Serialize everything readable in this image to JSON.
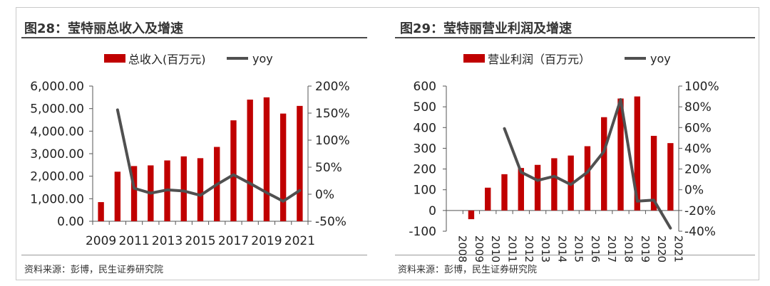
{
  "colors": {
    "bar": "#c00000",
    "line": "#505050",
    "axis": "#555555",
    "text": "#222222"
  },
  "chart_data": [
    {
      "type": "bar",
      "title": "图28：莹特丽总收入及增速",
      "legend": {
        "bar": "总收入(百万元)",
        "line": "yoy"
      },
      "source": "资料来源：彭博，民生证券研究院",
      "categories": [
        "2009",
        "2010",
        "2011",
        "2012",
        "2013",
        "2014",
        "2015",
        "2016",
        "2017",
        "2018",
        "2019",
        "2020",
        "2021"
      ],
      "x_tick_labels": [
        "2009",
        "2011",
        "2013",
        "2015",
        "2017",
        "2019",
        "2021"
      ],
      "series": [
        {
          "name": "总收入(百万元)",
          "type": "bar",
          "axis": "left",
          "values": [
            850,
            2200,
            2450,
            2480,
            2700,
            2880,
            2800,
            3300,
            4480,
            5400,
            5500,
            4780,
            5120
          ]
        },
        {
          "name": "yoy",
          "type": "line",
          "axis": "right",
          "values": [
            null,
            1.56,
            0.11,
            0.02,
            0.08,
            0.06,
            -0.02,
            0.18,
            0.36,
            0.2,
            0.03,
            -0.13,
            0.07
          ]
        }
      ],
      "y_left": {
        "min": 0,
        "max": 6000,
        "step": 1000,
        "tick_labels": [
          "0.00",
          "1,000.00",
          "2,000.00",
          "3,000.00",
          "4,000.00",
          "5,000.00",
          "6,000.00"
        ]
      },
      "y_right": {
        "min": -0.5,
        "max": 2.0,
        "step": 0.5,
        "tick_labels": [
          "-50%",
          "0%",
          "50%",
          "100%",
          "150%",
          "200%"
        ]
      },
      "x_label_rotation": 0
    },
    {
      "type": "bar",
      "title": "图29：莹特丽营业利润及增速",
      "legend": {
        "bar": "营业利润（百万元）",
        "line": "yoy"
      },
      "source": "资料来源：彭博，民生证券研究院",
      "categories": [
        "2008",
        "2009",
        "2010",
        "2011",
        "2012",
        "2013",
        "2014",
        "2015",
        "2016",
        "2017",
        "2018",
        "2019",
        "2020",
        "2021"
      ],
      "x_tick_labels": [
        "2008",
        "2009",
        "2010",
        "2011",
        "2012",
        "2013",
        "2014",
        "2015",
        "2016",
        "2017",
        "2018",
        "2019",
        "2020",
        "2021"
      ],
      "series": [
        {
          "name": "营业利润（百万元）",
          "type": "bar",
          "axis": "left",
          "values": [
            0,
            -42,
            110,
            175,
            205,
            220,
            252,
            265,
            310,
            450,
            540,
            550,
            360,
            325
          ]
        },
        {
          "name": "yoy",
          "type": "line",
          "axis": "right",
          "values": [
            null,
            null,
            null,
            0.59,
            0.17,
            0.09,
            0.13,
            0.05,
            0.17,
            0.37,
            0.87,
            -0.11,
            -0.1,
            -0.37
          ]
        }
      ],
      "y_left": {
        "min": -100,
        "max": 600,
        "step": 100,
        "tick_labels": [
          "-100",
          "0",
          "100",
          "200",
          "300",
          "400",
          "500",
          "600"
        ]
      },
      "y_right": {
        "min": -0.4,
        "max": 1.0,
        "step": 0.2,
        "tick_labels": [
          "-40%",
          "-20%",
          "0%",
          "20%",
          "40%",
          "60%",
          "80%",
          "100%"
        ]
      },
      "x_label_rotation": -90
    }
  ]
}
